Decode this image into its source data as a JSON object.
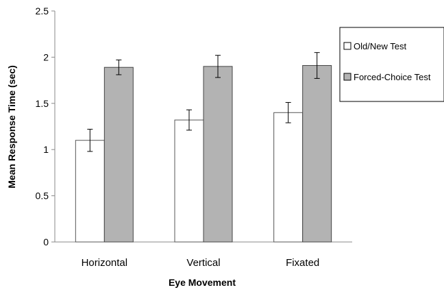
{
  "chart_data": {
    "type": "bar",
    "title": "",
    "xlabel": "Eye Movement",
    "ylabel": "Mean Response Time (sec)",
    "ylim": [
      0,
      2.5
    ],
    "yticks": [
      0,
      0.5,
      1,
      1.5,
      2,
      2.5
    ],
    "ytick_labels": [
      "0",
      "0.5",
      "1",
      "1.5",
      "2",
      "2.5"
    ],
    "categories": [
      "Horizontal",
      "Vertical",
      "Fixated"
    ],
    "series": [
      {
        "name": "Old/New Test",
        "values": [
          1.1,
          1.32,
          1.4
        ],
        "errors": [
          0.12,
          0.11,
          0.11
        ],
        "color": "#ffffff"
      },
      {
        "name": "Forced-Choice Test",
        "values": [
          1.89,
          1.9,
          1.91
        ],
        "errors": [
          0.08,
          0.12,
          0.14
        ],
        "color": "#b3b3b3"
      }
    ],
    "grid": false,
    "legend_position": "right"
  }
}
